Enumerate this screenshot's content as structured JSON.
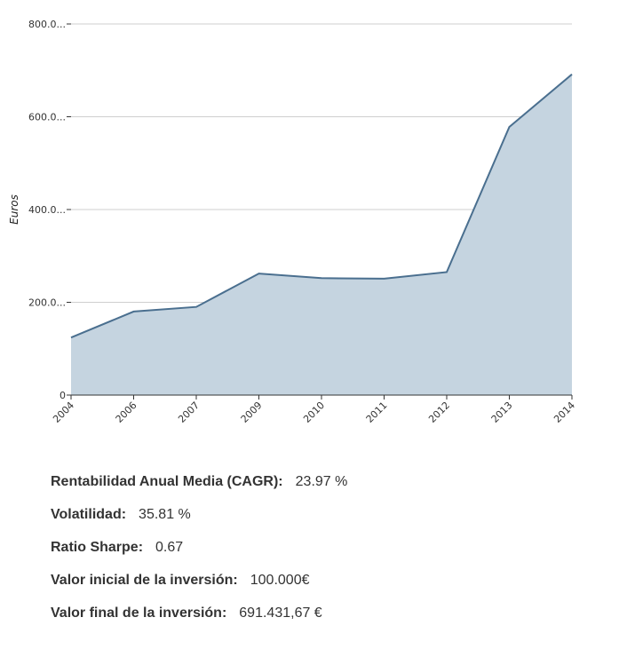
{
  "chart_data": {
    "type": "area",
    "ylabel": "Euros",
    "x": [
      "2004",
      "2006",
      "2007",
      "2009",
      "2010",
      "2011",
      "2012",
      "2013",
      "2014"
    ],
    "values": [
      124000,
      180000,
      190000,
      262000,
      252000,
      251000,
      265000,
      578000,
      691431.67
    ],
    "ylim": [
      0,
      800000
    ],
    "yticks": [
      0,
      200000,
      400000,
      600000,
      800000
    ],
    "ytick_labels": [
      "0",
      "200.0...",
      "400.0...",
      "600.0...",
      "800.0..."
    ],
    "grid": true,
    "line_color": "#4a6f8f",
    "fill_color": "#c5d4e0"
  },
  "stats": [
    {
      "label": "Rentabilidad Anual Media (CAGR):",
      "value": "23.97 %"
    },
    {
      "label": "Volatilidad:",
      "value": "35.81 %"
    },
    {
      "label": "Ratio Sharpe:",
      "value": "0.67"
    },
    {
      "label": "Valor inicial de la inversión:",
      "value": "100.000€"
    },
    {
      "label": "Valor final de la inversión:",
      "value": "691.431,67 €"
    }
  ]
}
